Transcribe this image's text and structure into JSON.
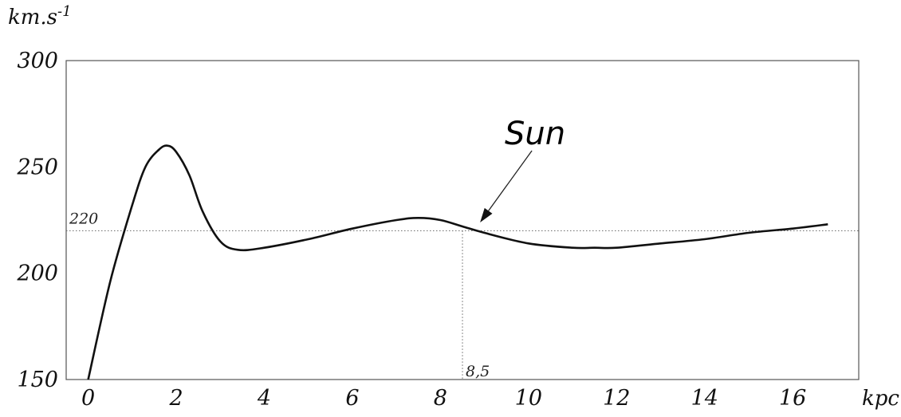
{
  "chart_data": {
    "type": "line",
    "ylabel": "km.s",
    "ylabel_exp": "-1",
    "xlabel": "kpc",
    "xlim": [
      -0.5,
      17.5
    ],
    "ylim": [
      150,
      300
    ],
    "xticks": [
      "0",
      "2",
      "4",
      "6",
      "8",
      "10",
      "12",
      "14",
      "16"
    ],
    "yticks": [
      "150",
      "200",
      "250",
      "300"
    ],
    "series": [
      {
        "x": [
          0,
          0.5,
          1.0,
          1.3,
          1.6,
          1.8,
          2.0,
          2.3,
          2.6,
          3.0,
          3.4,
          4.0,
          5.0,
          6.0,
          7.0,
          7.5,
          8.0,
          8.5,
          9.0,
          10.0,
          11.0,
          11.5,
          12.0,
          13.0,
          14.0,
          15.0,
          16.0,
          16.8
        ],
        "y": [
          150,
          196,
          232,
          250,
          258,
          260,
          257,
          246,
          229,
          215,
          211,
          212,
          216,
          221,
          225,
          226,
          225,
          222,
          219,
          214,
          212,
          212,
          212,
          214,
          216,
          219,
          221,
          223
        ]
      }
    ],
    "reference": {
      "y_value": 220,
      "y_label": "220",
      "x_value": 8.5,
      "x_label": "8,5"
    },
    "annotation": {
      "text": "Sun",
      "points_to": {
        "x": 8.9,
        "y": 222
      }
    },
    "grid": false,
    "legend": "none"
  }
}
